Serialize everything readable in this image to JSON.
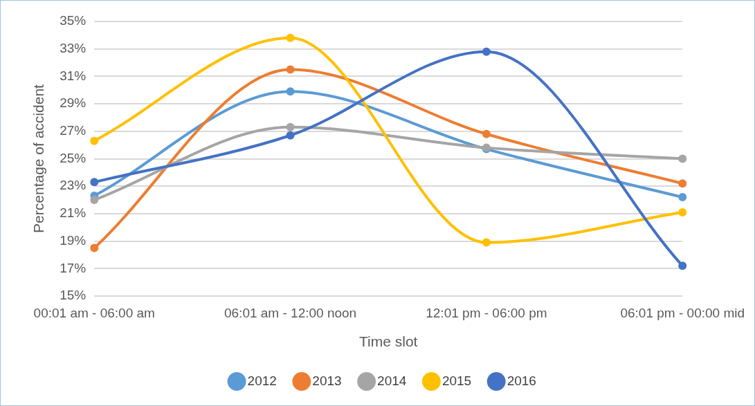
{
  "chart_data": {
    "type": "line",
    "xlabel": "Time slot",
    "ylabel": "Percentage of accident",
    "categories": [
      "00:01 am - 06:00 am",
      "06:01 am - 12:00 noon",
      "12:01 pm - 06:00 pm",
      "06:01 pm - 00:00 mid"
    ],
    "series": [
      {
        "name": "2012",
        "color": "#5b9bd5",
        "values": [
          22.3,
          29.9,
          25.7,
          22.2
        ]
      },
      {
        "name": "2013",
        "color": "#ed7d31",
        "values": [
          18.5,
          31.5,
          26.8,
          23.2
        ]
      },
      {
        "name": "2014",
        "color": "#a5a5a5",
        "values": [
          22.0,
          27.3,
          25.8,
          25.0
        ]
      },
      {
        "name": "2015",
        "color": "#ffc000",
        "values": [
          26.3,
          33.8,
          18.9,
          21.1
        ]
      },
      {
        "name": "2016",
        "color": "#4472c4",
        "values": [
          23.3,
          26.7,
          32.8,
          17.2
        ]
      }
    ],
    "ylim": [
      15,
      35
    ],
    "yticks": [
      {
        "value": 15,
        "label": "15%"
      },
      {
        "value": 17,
        "label": "17%"
      },
      {
        "value": 19,
        "label": "19%"
      },
      {
        "value": 21,
        "label": "21%"
      },
      {
        "value": 23,
        "label": "23%"
      },
      {
        "value": 25,
        "label": "25%"
      },
      {
        "value": 27,
        "label": "27%"
      },
      {
        "value": 29,
        "label": "29%"
      },
      {
        "value": 31,
        "label": "31%"
      },
      {
        "value": 33,
        "label": "33%"
      },
      {
        "value": 35,
        "label": "35%"
      }
    ],
    "grid": "y",
    "legend": "bottom",
    "marker": "circle",
    "line_style": "solid"
  }
}
